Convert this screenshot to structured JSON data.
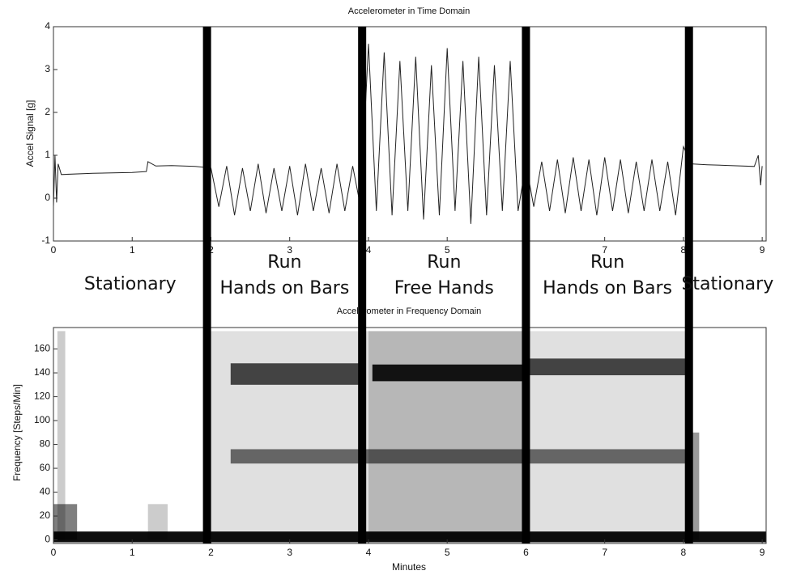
{
  "dividers": [
    1.95,
    3.92,
    6.0,
    8.07
  ],
  "phases": [
    {
      "lines": [
        "Stationary"
      ]
    },
    {
      "lines": [
        "Run",
        "Hands on Bars"
      ]
    },
    {
      "lines": [
        "Run",
        "Free Hands"
      ]
    },
    {
      "lines": [
        "Run",
        "Hands on Bars"
      ]
    },
    {
      "lines": [
        "Stationary"
      ]
    }
  ],
  "chart_data": [
    {
      "type": "line",
      "title": "Accelerometer in Time Domain",
      "ylabel": "Accel Signal [g]",
      "x": [
        0,
        0.02,
        0.04,
        0.06,
        0.1,
        0.5,
        1.0,
        1.18,
        1.2,
        1.3,
        1.5,
        1.8,
        1.9,
        2.0,
        2.1,
        2.2,
        2.3,
        2.4,
        2.5,
        2.6,
        2.7,
        2.8,
        2.9,
        3.0,
        3.1,
        3.2,
        3.3,
        3.4,
        3.5,
        3.6,
        3.7,
        3.8,
        3.9,
        4.0,
        4.1,
        4.2,
        4.3,
        4.4,
        4.5,
        4.6,
        4.7,
        4.8,
        4.9,
        5.0,
        5.1,
        5.2,
        5.3,
        5.4,
        5.5,
        5.6,
        5.7,
        5.8,
        5.9,
        6.0,
        6.1,
        6.2,
        6.3,
        6.4,
        6.5,
        6.6,
        6.7,
        6.8,
        6.9,
        7.0,
        7.1,
        7.2,
        7.3,
        7.4,
        7.5,
        7.6,
        7.7,
        7.8,
        7.9,
        8.0,
        8.1,
        8.3,
        8.6,
        8.9,
        8.95,
        8.98,
        9.0
      ],
      "series": [
        {
          "color": "#222222",
          "values": [
            -0.2,
            1.0,
            -0.1,
            0.8,
            0.55,
            0.58,
            0.6,
            0.62,
            0.85,
            0.75,
            0.76,
            0.74,
            0.72,
            0.7,
            -0.2,
            0.75,
            -0.4,
            0.7,
            -0.3,
            0.8,
            -0.35,
            0.7,
            -0.3,
            0.75,
            -0.4,
            0.8,
            -0.3,
            0.7,
            -0.35,
            0.8,
            -0.3,
            0.75,
            -0.2,
            3.6,
            -0.3,
            3.4,
            -0.4,
            3.2,
            -0.3,
            3.3,
            -0.5,
            3.1,
            -0.4,
            3.5,
            -0.3,
            3.2,
            -0.6,
            3.3,
            -0.4,
            3.1,
            -0.3,
            3.2,
            -0.3,
            0.8,
            -0.2,
            0.85,
            -0.3,
            0.9,
            -0.35,
            0.95,
            -0.3,
            0.9,
            -0.4,
            0.95,
            -0.3,
            0.9,
            -0.35,
            0.85,
            -0.3,
            0.9,
            -0.3,
            0.85,
            -0.4,
            1.2,
            0.8,
            0.78,
            0.76,
            0.74,
            1.0,
            0.3,
            0.75
          ]
        }
      ],
      "xlim": [
        0,
        9.05
      ],
      "ylim": [
        -1,
        4
      ],
      "xticks": [
        0,
        1,
        2,
        3,
        4,
        5,
        6,
        7,
        8,
        9
      ],
      "yticks": [
        -1,
        0,
        1,
        2,
        3,
        4
      ]
    },
    {
      "type": "heatmap",
      "title": "Accelerometer in Frequency Domain",
      "xlabel": "Minutes",
      "ylabel": "Frequency [Steps/Min]",
      "color": "#000000",
      "cells": [
        {
          "x": [
            1.9,
            8.1
          ],
          "y": [
            0,
            175
          ],
          "value": 0.12
        },
        {
          "x": [
            4.0,
            6.0
          ],
          "y": [
            0,
            175
          ],
          "value": 0.18
        },
        {
          "x": [
            0.05,
            0.15
          ],
          "y": [
            0,
            175
          ],
          "value": 0.2
        },
        {
          "x": [
            0,
            0.3
          ],
          "y": [
            0,
            30
          ],
          "value": 0.5
        },
        {
          "x": [
            1.2,
            1.45
          ],
          "y": [
            0,
            30
          ],
          "value": 0.2
        },
        {
          "x": [
            8.05,
            8.2
          ],
          "y": [
            0,
            90
          ],
          "value": 0.4
        },
        {
          "x": [
            2.25,
            8.1
          ],
          "y": [
            64,
            76
          ],
          "value": 0.55
        },
        {
          "x": [
            2.25,
            3.95
          ],
          "y": [
            130,
            148
          ],
          "value": 0.7
        },
        {
          "x": [
            4.05,
            5.95
          ],
          "y": [
            133,
            147
          ],
          "value": 0.9
        },
        {
          "x": [
            6.0,
            8.1
          ],
          "y": [
            138,
            152
          ],
          "value": 0.7
        },
        {
          "x": [
            0,
            9.05
          ],
          "y": [
            -2,
            7
          ],
          "value": 0.95
        }
      ],
      "xlim": [
        0,
        9.05
      ],
      "ylim": [
        -3,
        178
      ],
      "xticks": [
        0,
        1,
        2,
        3,
        4,
        5,
        6,
        7,
        8,
        9
      ],
      "yticks": [
        0,
        20,
        40,
        60,
        80,
        100,
        120,
        140,
        160
      ]
    }
  ]
}
